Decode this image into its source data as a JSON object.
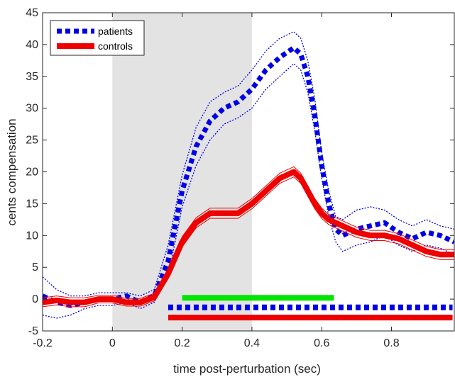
{
  "chart_data": {
    "type": "line",
    "title": "",
    "xlabel": "time post-perturbation (sec)",
    "ylabel": "cents compensation",
    "xlim": [
      -0.2,
      0.98
    ],
    "ylim": [
      -5,
      45
    ],
    "xticks": [
      -0.2,
      0,
      0.2,
      0.4,
      0.6,
      0.8
    ],
    "xtick_labels": [
      "-0.2",
      "0",
      "0.2",
      "0.4",
      "0.6",
      "0.8"
    ],
    "yticks": [
      -5,
      0,
      5,
      10,
      15,
      20,
      25,
      30,
      35,
      40,
      45
    ],
    "ytick_labels": [
      "-5",
      "0",
      "5",
      "10",
      "15",
      "20",
      "25",
      "30",
      "35",
      "40",
      "45"
    ],
    "grid": false,
    "legend_position": "top-left",
    "shaded_region": {
      "x_start": 0,
      "x_end": 0.4,
      "color": "#e3e3e3"
    },
    "series": [
      {
        "name": "patients",
        "color": "#0000e6",
        "style": "dotted-thick",
        "x": [
          -0.2,
          -0.16,
          -0.12,
          -0.08,
          -0.04,
          0,
          0.04,
          0.08,
          0.12,
          0.16,
          0.2,
          0.24,
          0.28,
          0.32,
          0.36,
          0.4,
          0.44,
          0.48,
          0.52,
          0.54,
          0.56,
          0.58,
          0.6,
          0.62,
          0.64,
          0.66,
          0.7,
          0.74,
          0.78,
          0.82,
          0.86,
          0.9,
          0.94,
          0.98
        ],
        "y": [
          0.5,
          -0.5,
          -1,
          -0.5,
          0,
          0,
          0.5,
          -0.5,
          0.5,
          6,
          17,
          24,
          28,
          30,
          31,
          33,
          36,
          38,
          39.5,
          38.5,
          35,
          29,
          21,
          15,
          11,
          10,
          11,
          11.5,
          12,
          10.5,
          9.5,
          10.5,
          10,
          9
        ],
        "upper": [
          3.5,
          1.5,
          0.5,
          0.5,
          1,
          1,
          1,
          0.5,
          1.5,
          8.5,
          19.5,
          27,
          31,
          32.5,
          33.5,
          36,
          39,
          41,
          42,
          41,
          37.5,
          31.5,
          23,
          17,
          13,
          12.5,
          14,
          14.5,
          14,
          12.5,
          11.5,
          12.5,
          11.5,
          11
        ],
        "lower": [
          -2.5,
          -3,
          -2.5,
          -1.5,
          -1,
          -1,
          -0.5,
          -1.5,
          -0.5,
          3.5,
          14.5,
          21,
          25,
          27.5,
          28.5,
          30,
          33,
          35,
          37,
          36,
          32.5,
          26.5,
          19,
          13,
          9,
          7.5,
          8.5,
          9,
          10,
          8.5,
          7.5,
          8.5,
          8,
          7
        ]
      },
      {
        "name": "controls",
        "color": "#ee0000",
        "style": "solid-thick",
        "x": [
          -0.2,
          -0.16,
          -0.12,
          -0.08,
          -0.04,
          0,
          0.04,
          0.08,
          0.12,
          0.16,
          0.2,
          0.24,
          0.28,
          0.32,
          0.36,
          0.4,
          0.44,
          0.48,
          0.52,
          0.54,
          0.56,
          0.58,
          0.6,
          0.62,
          0.66,
          0.7,
          0.74,
          0.78,
          0.82,
          0.86,
          0.9,
          0.94,
          0.98
        ],
        "y": [
          -0.5,
          -0.2,
          -0.5,
          -0.5,
          0,
          0,
          -0.5,
          -0.5,
          0.3,
          4,
          9,
          12,
          13.5,
          13.5,
          13.5,
          15,
          17,
          19,
          20,
          19,
          17,
          15,
          13.5,
          12.5,
          11.5,
          10.5,
          10,
          10,
          9.5,
          8.5,
          7.5,
          7,
          7
        ],
        "upper": [
          0.2,
          0.5,
          0.2,
          0.2,
          0.6,
          0.6,
          0.1,
          0.1,
          0.9,
          4.8,
          9.8,
          12.8,
          14.3,
          14.3,
          14.3,
          15.8,
          17.8,
          19.8,
          20.8,
          19.8,
          17.8,
          15.8,
          14.3,
          13.3,
          12.3,
          11.3,
          10.8,
          10.8,
          10.3,
          9.3,
          8.3,
          7.8,
          7.8
        ],
        "lower": [
          -1.2,
          -0.9,
          -1.2,
          -1.2,
          -0.6,
          -0.6,
          -1.1,
          -1.1,
          -0.3,
          3.2,
          8.2,
          11.2,
          12.7,
          12.7,
          12.7,
          14.2,
          16.2,
          18.2,
          19.2,
          18.2,
          16.2,
          14.2,
          12.7,
          11.7,
          10.7,
          9.7,
          9.2,
          9.2,
          8.7,
          7.7,
          6.7,
          6.2,
          6.2
        ]
      }
    ],
    "significance_bars": [
      {
        "color": "#00e600",
        "style": "solid",
        "x_start": 0.2,
        "x_end": 0.635,
        "y": 0.2
      },
      {
        "color": "#0000e6",
        "style": "dotted",
        "x_start": 0.16,
        "x_end": 0.975,
        "y": -1.3
      },
      {
        "color": "#ee0000",
        "style": "solid",
        "x_start": 0.16,
        "x_end": 0.975,
        "y": -2.9
      }
    ]
  }
}
